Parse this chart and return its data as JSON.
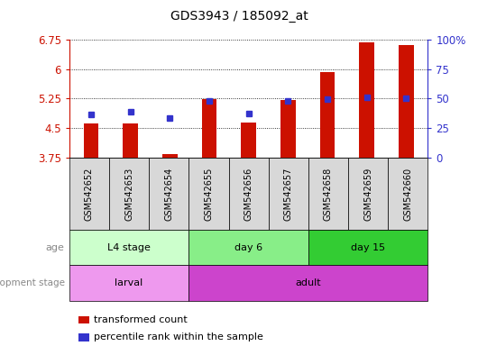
{
  "title": "GDS3943 / 185092_at",
  "samples": [
    "GSM542652",
    "GSM542653",
    "GSM542654",
    "GSM542655",
    "GSM542656",
    "GSM542657",
    "GSM542658",
    "GSM542659",
    "GSM542660"
  ],
  "transformed_count": [
    4.62,
    4.61,
    3.84,
    5.23,
    4.65,
    5.22,
    5.92,
    6.68,
    6.62
  ],
  "percentile_rank": [
    4.85,
    4.92,
    4.75,
    5.2,
    4.88,
    5.18,
    5.24,
    5.28,
    5.26
  ],
  "ylim": [
    3.75,
    6.75
  ],
  "yticks": [
    3.75,
    4.5,
    5.25,
    6.0,
    6.75
  ],
  "ytick_labels": [
    "3.75",
    "4.5",
    "5.25",
    "6",
    "6.75"
  ],
  "right_yticks": [
    0,
    25,
    50,
    75,
    100
  ],
  "right_ytick_labels": [
    "0",
    "25",
    "50",
    "75",
    "100%"
  ],
  "bar_color": "#cc1100",
  "dot_color": "#3333cc",
  "age_groups": [
    {
      "label": "L4 stage",
      "start": 0,
      "end": 2,
      "color": "#ccffcc"
    },
    {
      "label": "day 6",
      "start": 3,
      "end": 5,
      "color": "#88ee88"
    },
    {
      "label": "day 15",
      "start": 6,
      "end": 8,
      "color": "#33cc33"
    }
  ],
  "dev_groups": [
    {
      "label": "larval",
      "start": 0,
      "end": 2,
      "color": "#ee99ee"
    },
    {
      "label": "adult",
      "start": 3,
      "end": 8,
      "color": "#cc44cc"
    }
  ],
  "legend_bar_color": "#cc1100",
  "legend_dot_color": "#3333cc",
  "legend_label_bar": "transformed count",
  "legend_label_dot": "percentile rank within the sample",
  "left_axis_color": "#cc1100",
  "right_axis_color": "#3333cc",
  "grid_color": "#000000"
}
